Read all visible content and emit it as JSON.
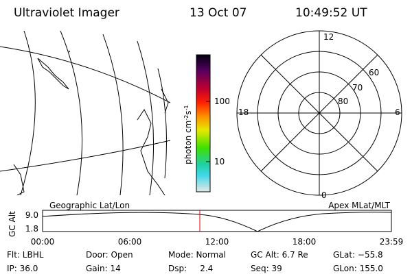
{
  "header": {
    "title": "Ultraviolet Imager",
    "date": "13 Oct 07",
    "time": "10:49:52 UT"
  },
  "colorbar": {
    "label": "photon cm",
    "exp1": "-2",
    "unit2": "s",
    "exp2": "-1",
    "ticks": [
      "100",
      "10"
    ]
  },
  "polar": {
    "mlt_labels": [
      "12",
      "18",
      "6",
      "0"
    ],
    "mlat_labels": [
      "60",
      "70",
      "80"
    ]
  },
  "captions": {
    "left": "Geographic Lat/Lon",
    "right": "Apex MLat/MLT"
  },
  "altitude_plot": {
    "ylabel": "GC Alt",
    "yticks": [
      "9.0",
      "1.8"
    ],
    "xticks": [
      "00:00",
      "06:00",
      "12:00",
      "18:00",
      "23:59"
    ]
  },
  "footer": {
    "rows": [
      [
        "Flt: LBHL",
        "Door: Open",
        "Mode: Normal",
        "GC Alt: 6.7 Re",
        "GLat: −55.8"
      ],
      [
        "IP: 36.0",
        "Gain: 14",
        "Dsp:     2.4",
        "Seq: 39",
        "GLon: 155.0"
      ]
    ]
  }
}
